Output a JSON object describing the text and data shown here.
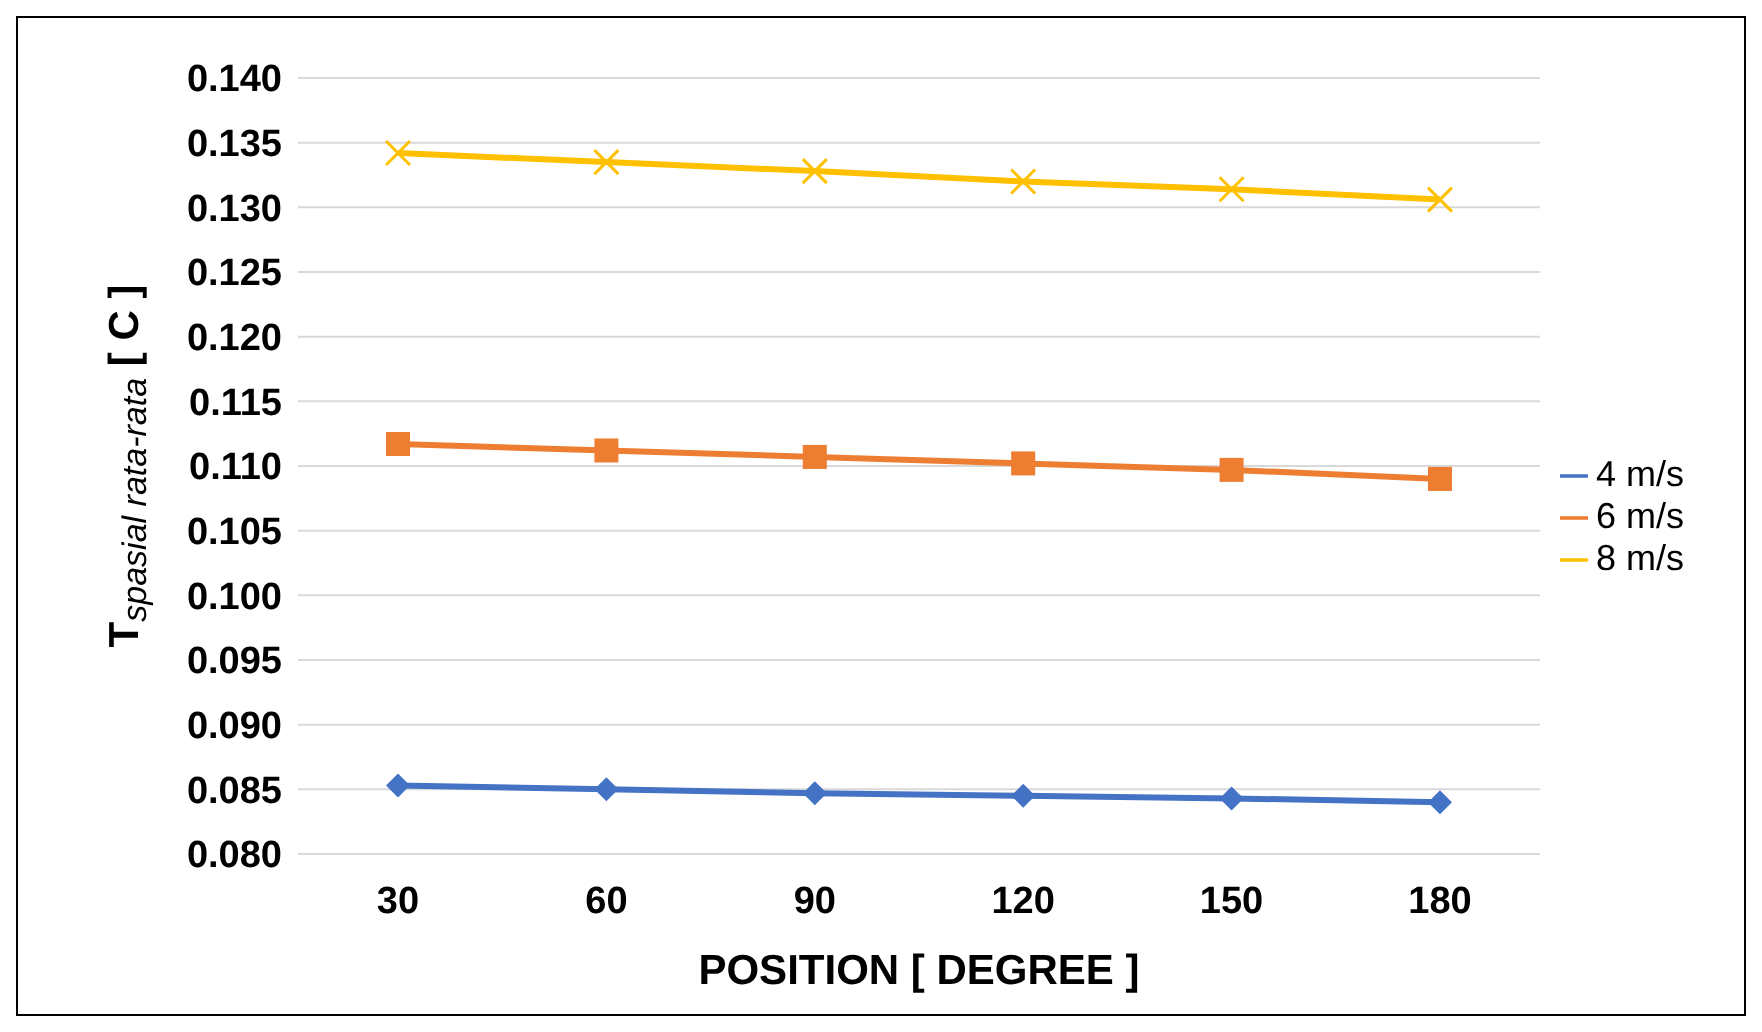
{
  "chart_data": {
    "type": "line",
    "xlabel": "POSITION [ DEGREE ]",
    "ylabel": "T$_{spasial rata-rata}$ [ C ]",
    "categories": [
      "30",
      "60",
      "90",
      "120",
      "150",
      "180"
    ],
    "series": [
      {
        "name": "4 m/s",
        "color": "#4472c4",
        "marker": "diamond",
        "values": [
          0.0853,
          0.085,
          0.0847,
          0.0845,
          0.0843,
          0.084
        ]
      },
      {
        "name": "6 m/s",
        "color": "#ed7d31",
        "marker": "square",
        "values": [
          0.1117,
          0.1112,
          0.1107,
          0.1102,
          0.1097,
          0.109
        ]
      },
      {
        "name": "8 m/s",
        "color": "#ffc000",
        "marker": "cross",
        "values": [
          0.1342,
          0.1335,
          0.1328,
          0.132,
          0.1314,
          0.1306
        ]
      }
    ],
    "ylim": [
      0.08,
      0.14
    ],
    "yticks": [
      {
        "value": 0.08,
        "label": "0.080"
      },
      {
        "value": 0.085,
        "label": "0.085"
      },
      {
        "value": 0.09,
        "label": "0.090"
      },
      {
        "value": 0.095,
        "label": "0.095"
      },
      {
        "value": 0.1,
        "label": "0.100"
      },
      {
        "value": 0.105,
        "label": "0.105"
      },
      {
        "value": 0.11,
        "label": "0.110"
      },
      {
        "value": 0.115,
        "label": "0.115"
      },
      {
        "value": 0.12,
        "label": "0.120"
      },
      {
        "value": 0.125,
        "label": "0.125"
      },
      {
        "value": 0.13,
        "label": "0.130"
      },
      {
        "value": 0.135,
        "label": "0.135"
      },
      {
        "value": 0.14,
        "label": "0.140"
      }
    ],
    "grid": "y",
    "legend": "right"
  }
}
